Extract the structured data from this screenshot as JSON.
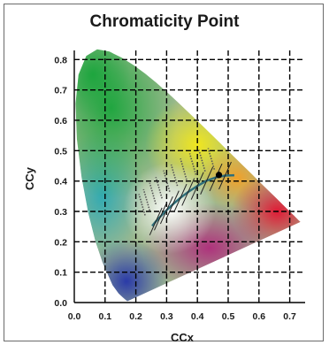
{
  "chart_data": {
    "type": "scatter",
    "title": "Chromaticity Point",
    "xlabel": "CCx",
    "ylabel": "CCy",
    "xlim": [
      0.0,
      0.75
    ],
    "ylim": [
      0.0,
      0.83
    ],
    "x_ticks": [
      "0.0",
      "0.1",
      "0.2",
      "0.3",
      "0.4",
      "0.5",
      "0.6",
      "0.7"
    ],
    "y_ticks": [
      "0.0",
      "0.1",
      "0.2",
      "0.3",
      "0.4",
      "0.5",
      "0.6",
      "0.7",
      "0.8"
    ],
    "grid": true,
    "grid_style": "dashed",
    "point": {
      "x": 0.47,
      "y": 0.42
    },
    "colors": {
      "spectral_green": "#1aa53c",
      "spectral_yellow": "#f0e61e",
      "spectral_red": "#e01a35",
      "spectral_blue": "#2a3aa8",
      "locus_line": "#2f6f7a",
      "point": "#000000"
    }
  }
}
